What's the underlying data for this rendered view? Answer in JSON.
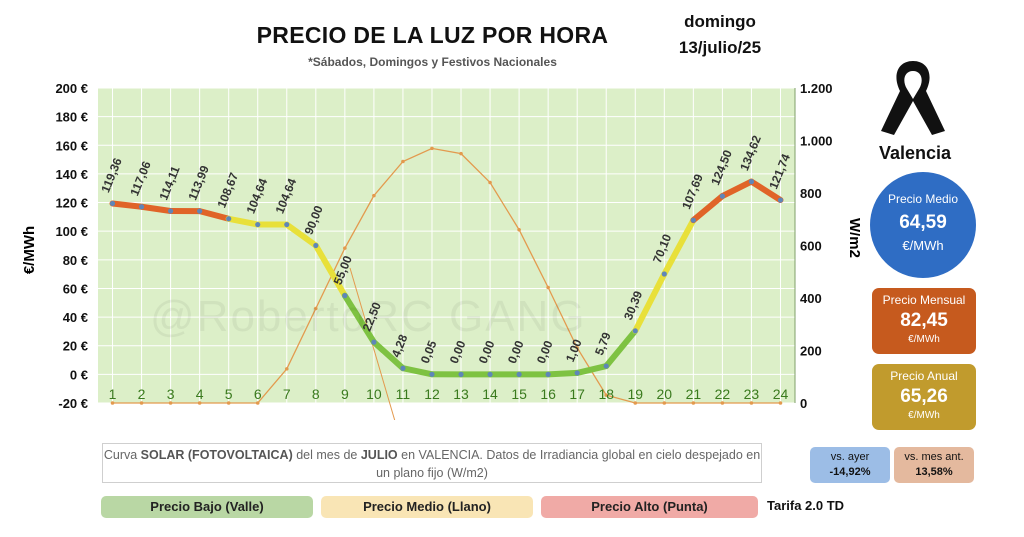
{
  "header": {
    "title": "PRECIO DE LA LUZ POR HORA",
    "subtitle": "*Sábados, Domingos y Festivos Nacionales",
    "day": "domingo",
    "date": "13/julio/25"
  },
  "location": "Valencia",
  "watermark": "@RobertoRC GANG",
  "stats": {
    "medio": {
      "label": "Precio Medio",
      "value": "64,59",
      "unit": "€/MWh",
      "color": "#2f6dc4"
    },
    "mensual": {
      "label": "Precio Mensual",
      "value": "82,45",
      "unit": "€/MWh",
      "color": "#c65a1e"
    },
    "anual": {
      "label": "Precio Anual",
      "value": "65,26",
      "unit": "€/MWh",
      "color": "#c19b2d"
    }
  },
  "comparisons": {
    "ayer": {
      "label": "vs. ayer",
      "value": "-14,92%"
    },
    "mes": {
      "label": "vs. mes ant.",
      "value": "13,58%"
    }
  },
  "note": {
    "p1": "Curva ",
    "bold1": "SOLAR (FOTOVOLTAICA)",
    "p2": " del mes de ",
    "bold2": "JULIO",
    "p3": " en VALENCIA. Datos de Irradiancia global en cielo despejado en un plano fijo (W/m2)"
  },
  "legend": {
    "low": "Precio Bajo (Valle)",
    "mid": "Precio Medio (Llano)",
    "high": "Precio Alto (Punta)",
    "tarifa": "Tarifa 2.0 TD"
  },
  "chart_data": {
    "type": "line",
    "x": [
      1,
      2,
      3,
      4,
      5,
      6,
      7,
      8,
      9,
      10,
      11,
      12,
      13,
      14,
      15,
      16,
      17,
      18,
      19,
      20,
      21,
      22,
      23,
      24
    ],
    "xlabels": [
      "1",
      "2",
      "3",
      "4",
      "5",
      "6",
      "7",
      "8",
      "9",
      "10",
      "11",
      "12",
      "13",
      "14",
      "15",
      "16",
      "17",
      "18",
      "19",
      "20",
      "21",
      "22",
      "23",
      "24"
    ],
    "series": [
      {
        "values": [
          119.36,
          117.06,
          114.11,
          113.99,
          108.67,
          104.64,
          104.64,
          90.0,
          55.0,
          22.5,
          4.28,
          0.05,
          0.0,
          0.0,
          0.0,
          0.0,
          1.0,
          5.79,
          30.39,
          70.1,
          107.69,
          124.5,
          134.62,
          121.74
        ],
        "labels": [
          "119,36",
          "117,06",
          "114,11",
          "113,99",
          "108,67",
          "104,64",
          "104,64",
          "90,00",
          "55,00",
          "22,50",
          "4,28",
          "0,05",
          "0,00",
          "0,00",
          "0,00",
          "0,00",
          "1,00",
          "5,79",
          "30,39",
          "70,10",
          "107,69",
          "124,50",
          "134,62",
          "121,74"
        ],
        "axis": "left"
      },
      {
        "values": [
          0,
          0,
          0,
          0,
          0,
          0,
          130,
          360,
          590,
          790,
          920,
          970,
          950,
          840,
          660,
          440,
          210,
          30,
          0,
          0,
          0,
          0,
          0,
          0
        ],
        "axis": "right",
        "color": "#e39a4e"
      }
    ],
    "ylabel": "€/MWh",
    "y2label": "W/m2",
    "ylim": [
      -20,
      200
    ],
    "yticks": [
      -20,
      0,
      20,
      40,
      60,
      80,
      100,
      120,
      140,
      160,
      180,
      200
    ],
    "yticklabels": [
      "-20 €",
      "0 €",
      "20 €",
      "40 €",
      "60 €",
      "80 €",
      "100 €",
      "120 €",
      "140 €",
      "160 €",
      "180 €",
      "200 €"
    ],
    "y2lim": [
      0,
      1200
    ],
    "y2ticks": [
      0,
      200,
      400,
      600,
      800,
      1000,
      1200
    ],
    "y2ticklabels": [
      "0",
      "200",
      "400",
      "600",
      "800",
      "1.000",
      "1.200"
    ],
    "grid": true,
    "colors": {
      "low": "#7ec242",
      "mid": "#e8e03a",
      "high": "#e06428",
      "plot_bg": "#dcefc8",
      "solar": "#e39a4e"
    }
  }
}
